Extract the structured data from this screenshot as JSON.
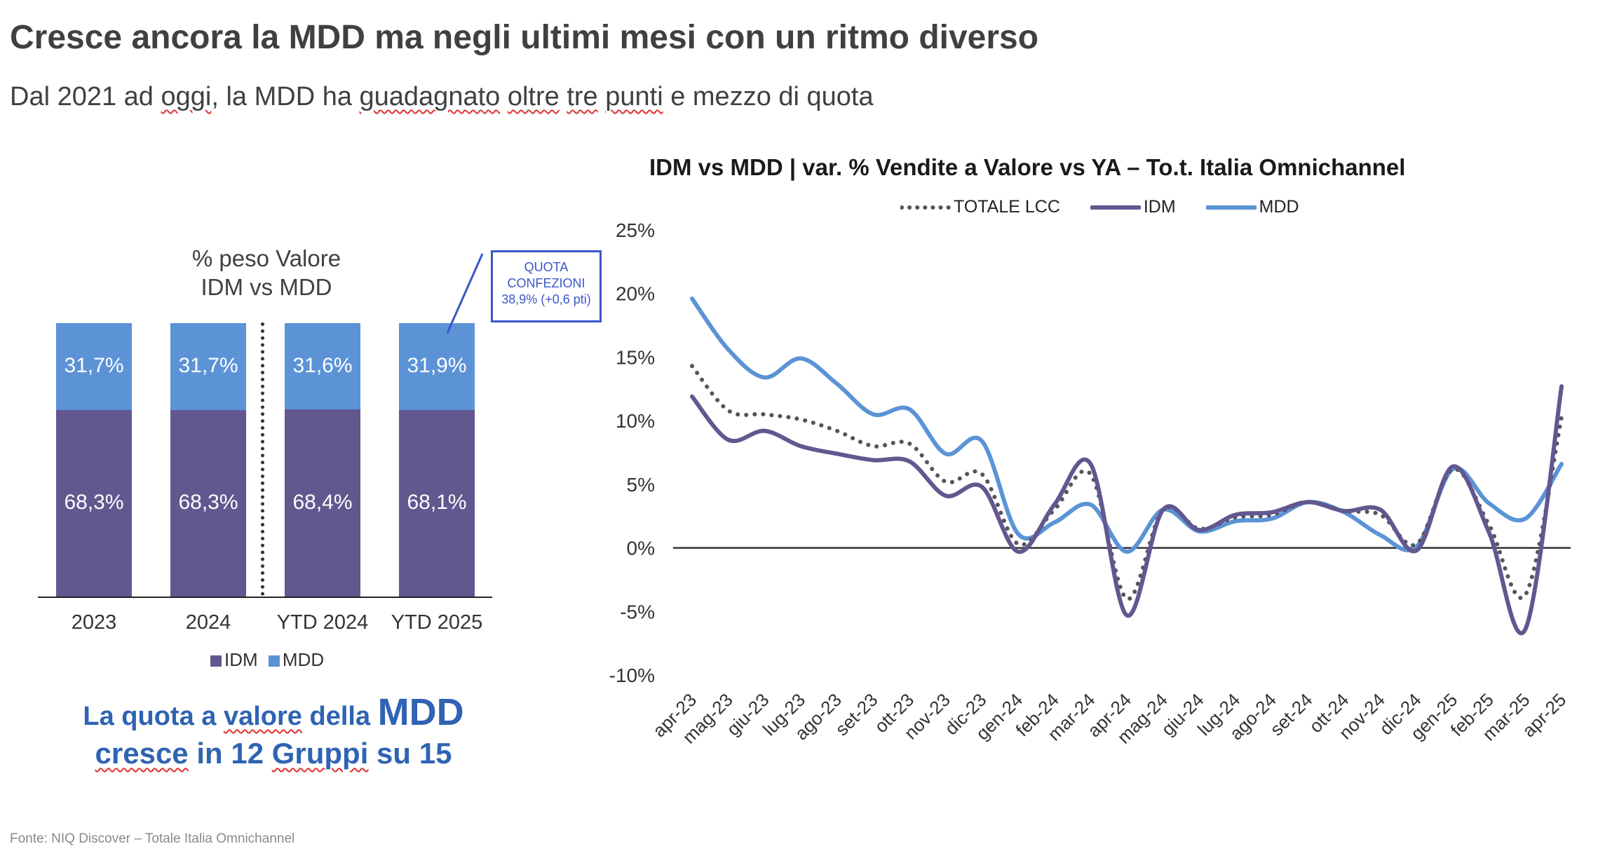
{
  "header": {
    "title": "Cresce ancora la MDD ma negli ultimi mesi con un ritmo diverso",
    "subtitle_parts": [
      "Dal 2021 ad ",
      "oggi",
      ", la MDD ha ",
      "guadagnato",
      " ",
      "oltre",
      " ",
      "tre",
      " ",
      "punti",
      " e mezzo di quota"
    ]
  },
  "footer": {
    "source": "Fonte: NIQ Discover – Totale Italia Omnichannel"
  },
  "callout": {
    "line1": "QUOTA",
    "line2": "CONFEZIONI",
    "line3": "38,9% (+0,6 pti)"
  },
  "highlight": {
    "line1_prefix": "La quota a ",
    "line1_word": "valore",
    "line1_mid": " della ",
    "line1_big": "MDD",
    "line2_word1": "cresce",
    " line2_mid": "",
    "line2_rest1": " in 12 ",
    "line2_word2": "Gruppi",
    "line2_rest2": " su 15"
  },
  "colors": {
    "idm": "#62578f",
    "mdd": "#5b93d6",
    "total": "#555555",
    "callout": "#3a57c9",
    "highlight": "#2f63b3"
  },
  "chart_data": [
    {
      "type": "bar",
      "title_line1": "% peso Valore",
      "title_line2": "IDM vs MDD",
      "categories": [
        "2023",
        "2024",
        "YTD 2024",
        "YTD 2025"
      ],
      "series": [
        {
          "name": "IDM",
          "values": [
            68.3,
            68.3,
            68.4,
            68.1
          ],
          "labels": [
            "68,3%",
            "68,3%",
            "68,4%",
            "68,1%"
          ]
        },
        {
          "name": "MDD",
          "values": [
            31.7,
            31.7,
            31.6,
            31.9
          ],
          "labels": [
            "31,7%",
            "31,7%",
            "31,6%",
            "31,9%"
          ]
        }
      ],
      "stacked": true
    },
    {
      "type": "line",
      "title": "IDM vs MDD | var. % Vendite a Valore vs YA – To.t. Italia Omnichannel",
      "x": [
        "apr-23",
        "mag-23",
        "giu-23",
        "lug-23",
        "ago-23",
        "set-23",
        "ott-23",
        "nov-23",
        "dic-23",
        "gen-24",
        "feb-24",
        "mar-24",
        "apr-24",
        "mag-24",
        "giu-24",
        "lug-24",
        "ago-24",
        "set-24",
        "ott-24",
        "nov-24",
        "dic-24",
        "gen-25",
        "feb-25",
        "mar-25",
        "apr-25"
      ],
      "ylim": [
        -10,
        25
      ],
      "yticks": [
        25,
        20,
        15,
        10,
        5,
        0,
        -5,
        -10
      ],
      "ytick_labels": [
        "25%",
        "20%",
        "15%",
        "10%",
        "5%",
        "0%",
        "-5%",
        "-10%"
      ],
      "legend_position": "top",
      "series": [
        {
          "name": "TOTALE LCC",
          "style": "dotted",
          "values": [
            14.3,
            10.8,
            10.5,
            10.1,
            9.2,
            8.0,
            8.2,
            5.2,
            5.8,
            0.3,
            3.0,
            5.8,
            -4.0,
            3.0,
            1.5,
            2.4,
            2.6,
            3.6,
            2.9,
            2.6,
            0.3,
            6.2,
            1.8,
            -3.7,
            10.3
          ]
        },
        {
          "name": "IDM",
          "style": "solid",
          "values": [
            11.9,
            8.5,
            9.2,
            8.0,
            7.4,
            6.9,
            6.8,
            4.1,
            4.8,
            -0.3,
            3.4,
            6.6,
            -5.3,
            3.0,
            1.4,
            2.6,
            2.8,
            3.6,
            2.9,
            3.0,
            -0.2,
            6.4,
            1.2,
            -6.4,
            12.7
          ]
        },
        {
          "name": "MDD",
          "style": "solid",
          "values": [
            19.6,
            15.6,
            13.4,
            14.9,
            12.9,
            10.5,
            10.9,
            7.4,
            8.4,
            1.1,
            2.0,
            3.4,
            -0.3,
            3.0,
            1.3,
            2.1,
            2.3,
            3.6,
            2.8,
            1.0,
            0.1,
            6.2,
            3.5,
            2.3,
            6.6
          ]
        }
      ]
    }
  ]
}
